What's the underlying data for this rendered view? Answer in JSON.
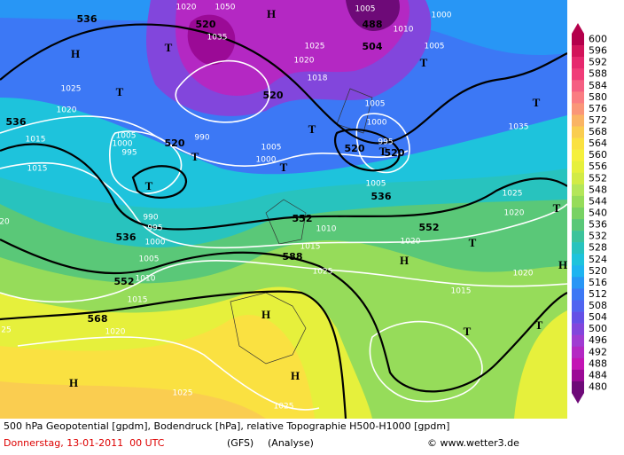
{
  "map": {
    "labels": [
      "536",
      "H",
      "1025",
      "1020",
      "536",
      "1015",
      "1015",
      "1020",
      "520",
      "1050",
      "1035",
      "H",
      "1005",
      "488",
      "1010",
      "1000",
      "504",
      "1005",
      "T",
      "T",
      "1025",
      "1020",
      "1018",
      "T",
      "520",
      "T",
      "T",
      "1035",
      "1005",
      "1000",
      "520",
      "995",
      "T",
      "520",
      "520",
      "990",
      "T",
      "1005",
      "1000",
      "995",
      "1000",
      "1005",
      "T",
      "T",
      "1005",
      "536",
      "1025",
      "1020",
      "T",
      "552",
      "1010",
      "552",
      "T",
      "990",
      "995",
      "536",
      "1000",
      "1005",
      "1015",
      "588",
      "1020",
      "H",
      "1025",
      "552",
      "1010",
      "1015",
      "1015",
      "1020",
      "H",
      "568",
      "1020",
      "H",
      "T",
      "T",
      "H",
      "H",
      "1025",
      "1025",
      "20",
      "25"
    ]
  },
  "legend": {
    "values": [
      600,
      596,
      592,
      588,
      584,
      580,
      576,
      572,
      568,
      564,
      560,
      556,
      552,
      548,
      544,
      540,
      536,
      532,
      528,
      524,
      520,
      516,
      512,
      508,
      504,
      500,
      496,
      492,
      488,
      484,
      480
    ],
    "colors": [
      "#b4004b",
      "#d2145a",
      "#e6286e",
      "#f03c78",
      "#f55f82",
      "#fa7d82",
      "#fa9678",
      "#fab464",
      "#facd50",
      "#fae141",
      "#f5f03c",
      "#e6f03c",
      "#d2eb46",
      "#b4e65a",
      "#96dc5a",
      "#78d264",
      "#5ac878",
      "#3cc39b",
      "#28c3be",
      "#1ec3dc",
      "#1eb4f0",
      "#2896f5",
      "#3c78f5",
      "#5064f0",
      "#6450e6",
      "#8246dc",
      "#a03cd2",
      "#b428c3",
      "#c314b4",
      "#9b0a96",
      "#6e0a78"
    ]
  },
  "footer": {
    "description": "500 hPa Geopotential [gpdm], Bodendruck [hPa], relative Topographie H500-H1000 [gpdm]",
    "date": "Donnerstag, 13-01-2011  00 UTC",
    "model": "(GFS)",
    "run": "(Analyse)",
    "copyright": "© www.wetter3.de"
  }
}
